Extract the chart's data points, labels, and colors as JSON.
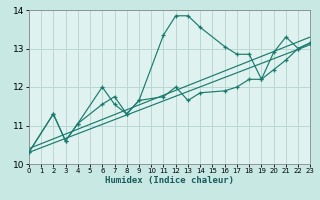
{
  "xlabel": "Humidex (Indice chaleur)",
  "bg_color": "#cceee8",
  "grid_color": "#aad4ce",
  "axes_bg": "#e8f8f5",
  "line_color": "#1a7a6e",
  "xlim": [
    0,
    23
  ],
  "ylim": [
    10,
    14
  ],
  "xticks": [
    0,
    1,
    2,
    3,
    4,
    5,
    6,
    7,
    8,
    9,
    10,
    11,
    12,
    13,
    14,
    15,
    16,
    17,
    18,
    19,
    20,
    21,
    22,
    23
  ],
  "yticks": [
    10,
    11,
    12,
    13,
    14
  ],
  "line1_x": [
    0,
    2,
    3,
    4,
    6,
    7,
    8,
    9,
    11,
    12,
    13,
    14,
    16,
    17,
    18,
    19,
    20,
    21,
    22,
    23
  ],
  "line1_y": [
    10.3,
    11.3,
    10.6,
    11.05,
    12.0,
    11.55,
    11.3,
    11.65,
    13.35,
    13.85,
    13.85,
    13.55,
    13.05,
    12.85,
    12.85,
    12.2,
    12.9,
    13.3,
    13.0,
    13.15
  ],
  "line2_x": [
    0,
    2,
    3,
    4,
    6,
    7,
    8,
    9,
    11,
    12,
    13,
    14,
    16,
    17,
    18,
    19,
    20,
    21,
    22,
    23
  ],
  "line2_y": [
    10.3,
    11.3,
    10.6,
    11.05,
    11.55,
    11.75,
    11.3,
    11.65,
    11.75,
    12.0,
    11.65,
    11.85,
    11.9,
    12.0,
    12.2,
    12.2,
    12.45,
    12.7,
    13.0,
    13.15
  ],
  "line3": [
    [
      0,
      10.3
    ],
    [
      23,
      13.1
    ]
  ],
  "line4": [
    [
      0,
      10.4
    ],
    [
      23,
      13.3
    ]
  ]
}
